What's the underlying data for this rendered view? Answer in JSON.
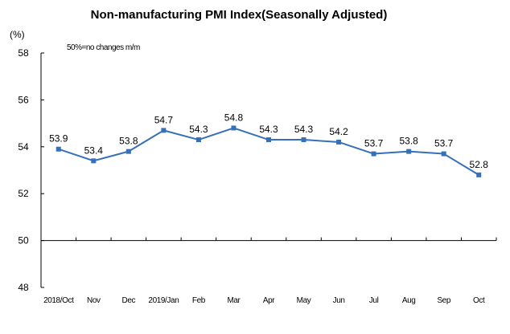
{
  "chart_data": {
    "type": "line",
    "title": "Non-manufacturing PMI Index(Seasonally Adjusted)",
    "ylabel": "(%)",
    "xlabel": "",
    "annotation": "50%=no changes  m/m",
    "ylim": [
      48,
      58
    ],
    "yticks": [
      48,
      50,
      52,
      54,
      56,
      58
    ],
    "x_axis_crosses_at": 50,
    "grid": false,
    "legend": "none",
    "categories": [
      "2018/Oct",
      "Nov",
      "Dec",
      "2019/Jan",
      "Feb",
      "Mar",
      "Apr",
      "May",
      "Jun",
      "Jul",
      "Aug",
      "Sep",
      "Oct"
    ],
    "series": [
      {
        "name": "Non-manufacturing PMI",
        "color": "#3570B8",
        "values": [
          53.9,
          53.4,
          53.8,
          54.7,
          54.3,
          54.8,
          54.3,
          54.3,
          54.2,
          53.7,
          53.8,
          53.7,
          52.8
        ],
        "data_labels": [
          "53.9",
          "53.4",
          "53.8",
          "54.7",
          "54.3",
          "54.8",
          "54.3",
          "54.3",
          "54.2",
          "53.7",
          "53.8",
          "53.7",
          "52.8"
        ]
      }
    ]
  }
}
